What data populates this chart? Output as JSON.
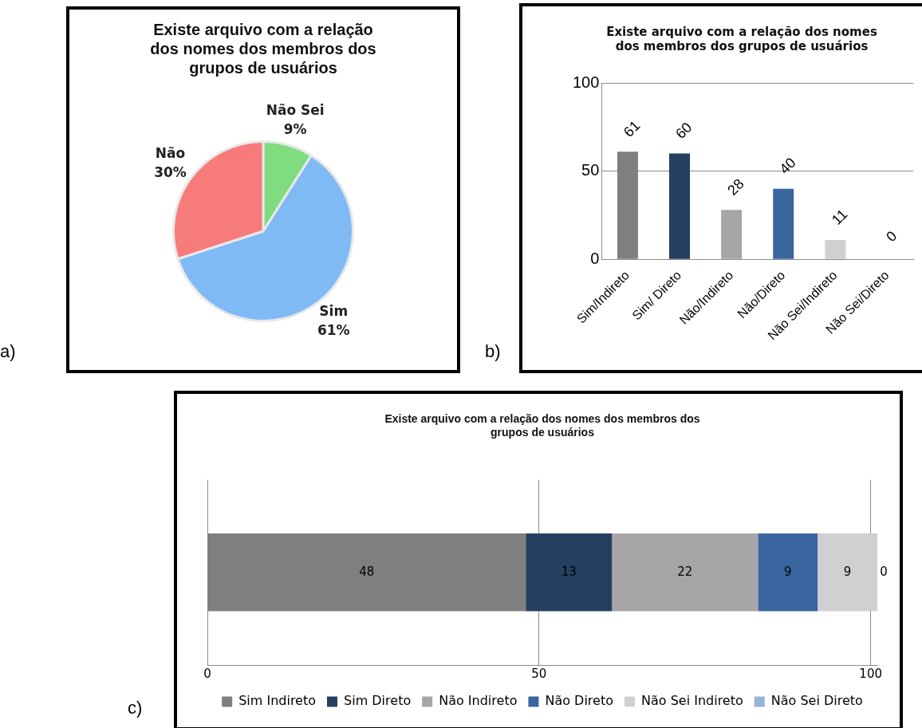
{
  "chart_data": [
    {
      "type": "pie",
      "title": "Existe arquivo com a relação dos nomes dos membros dos grupos de usuários",
      "categories": [
        "Não Sei",
        "Sim",
        "Não"
      ],
      "values": [
        9,
        61,
        30
      ],
      "colors": [
        "#7fdc7f",
        "#7fbaf5",
        "#f77b7b"
      ],
      "value_labels": [
        "9%",
        "61%",
        "30%"
      ],
      "annotations": [
        "a)"
      ]
    },
    {
      "type": "bar",
      "title": "Existe arquivo com a relação dos nomes dos membros dos grupos de usuários",
      "categories": [
        "Sim/Indireto",
        "Sim/ Direto",
        "Não/Indireto",
        "Não/Direto",
        "Não Sei/Indireto",
        "Não Sei/Direto"
      ],
      "values": [
        61,
        60,
        28,
        40,
        11,
        0
      ],
      "colors": [
        "#7f7f7f",
        "#243f60",
        "#a6a6a6",
        "#3a66a0",
        "#d0d0d0",
        "#95b3d7"
      ],
      "ylim": [
        0,
        100
      ],
      "yticks": [
        0,
        50,
        100
      ],
      "grid": "y",
      "data_labels": true,
      "annotations": [
        "b)"
      ]
    },
    {
      "type": "bar",
      "orientation": "horizontal",
      "stacked": true,
      "title": "Existe arquivo com a relação dos nomes dos membros dos grupos de usuários",
      "categories": [
        null
      ],
      "series": [
        {
          "name": "Sim Indireto",
          "color": "#7f7f7f",
          "values": [
            48
          ]
        },
        {
          "name": "Sim Direto",
          "color": "#243f60",
          "values": [
            13
          ]
        },
        {
          "name": "Não Indireto",
          "color": "#a6a6a6",
          "values": [
            22
          ]
        },
        {
          "name": "Não Direto",
          "color": "#3a66a0",
          "values": [
            9
          ]
        },
        {
          "name": "Não Sei Indireto",
          "color": "#d0d0d0",
          "values": [
            9
          ]
        },
        {
          "name": "Não Sei Direto",
          "color": "#95b3d7",
          "values": [
            0
          ]
        }
      ],
      "xlim": [
        0,
        101
      ],
      "xticks": [
        0,
        50,
        100
      ],
      "grid": "x",
      "legend": "bottom",
      "data_labels": true,
      "annotations": [
        "c)"
      ]
    }
  ]
}
